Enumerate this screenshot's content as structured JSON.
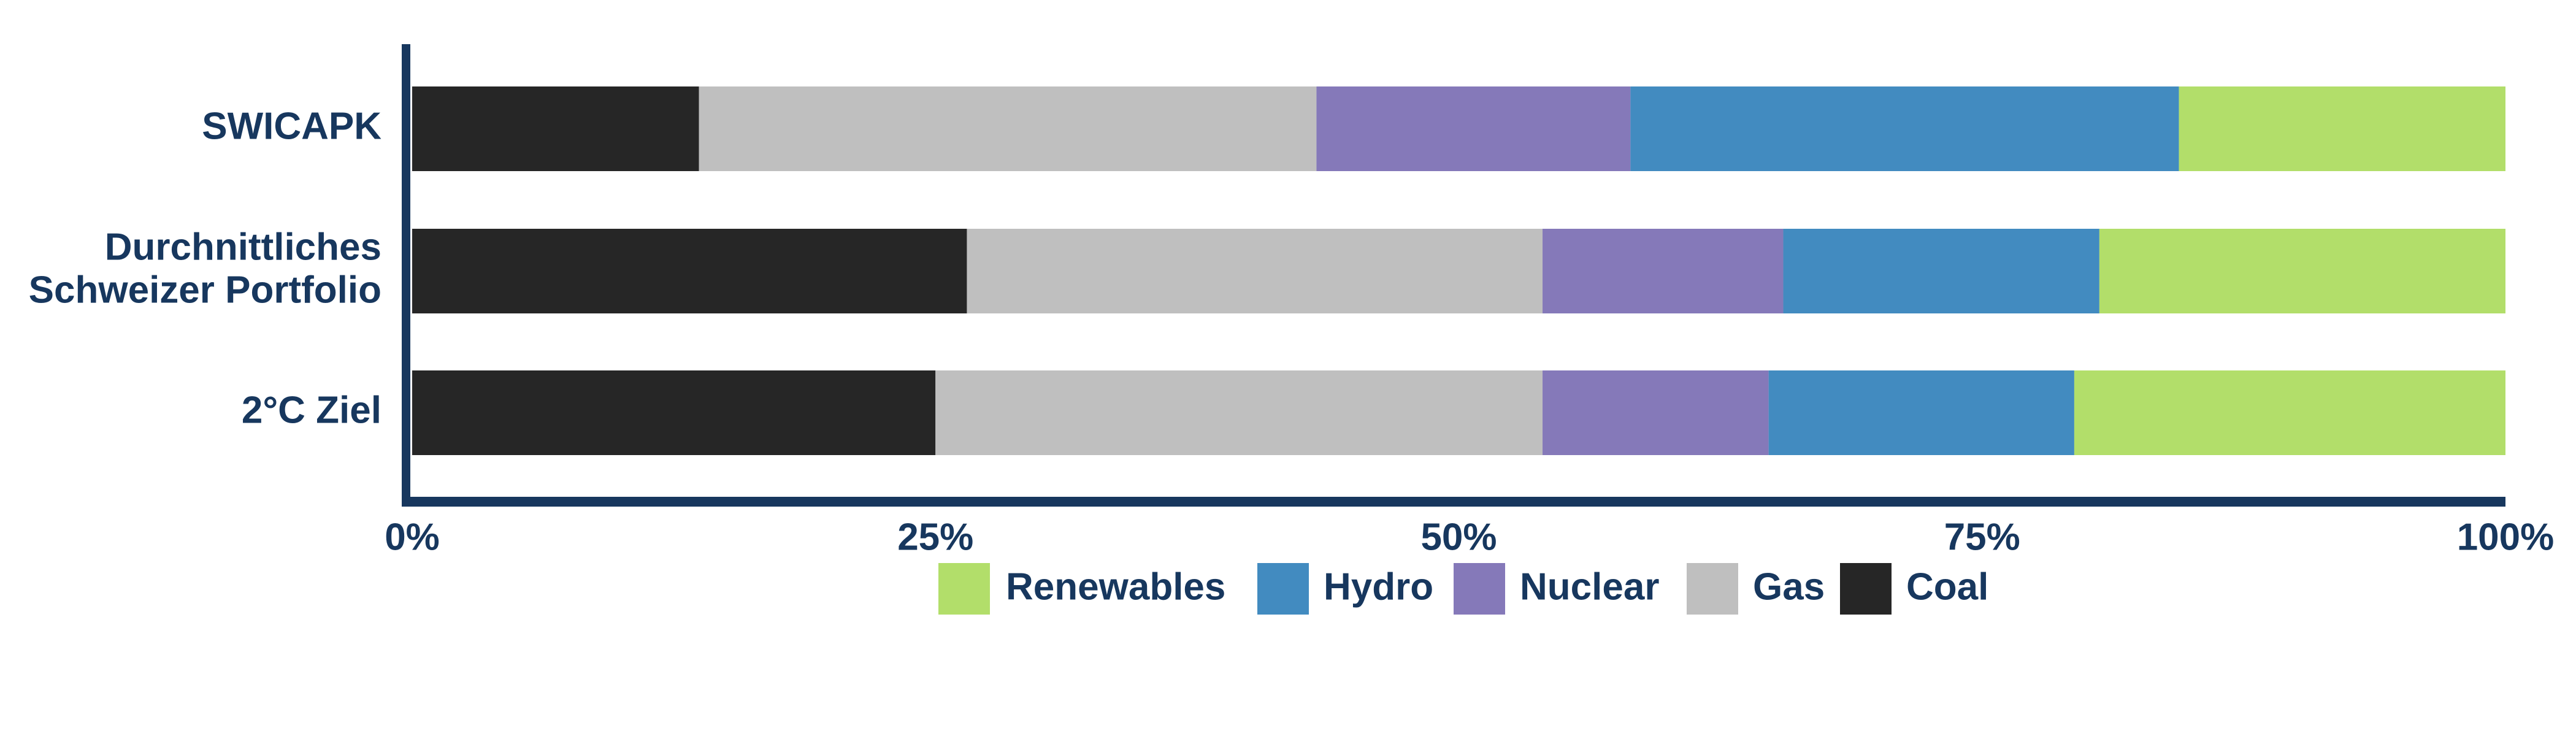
{
  "colors": {
    "axis": "#17375E",
    "text": "#17375E",
    "Coal": "#262626",
    "Gas": "#BFBFBF",
    "Nuclear": "#8579B9",
    "Hydro": "#428BC0",
    "Renewables": "#B2DE6A"
  },
  "chart_data": {
    "type": "bar",
    "orientation": "horizontal",
    "stacked": "100%",
    "categories": [
      [
        "SWICAPK"
      ],
      [
        "Durchnittliches",
        "Schweizer Portfolio"
      ],
      [
        "2°C Ziel"
      ]
    ],
    "series": [
      {
        "name": "Coal",
        "values": [
          13.7,
          26.5,
          25.0
        ]
      },
      {
        "name": "Gas",
        "values": [
          29.5,
          27.5,
          29.0
        ]
      },
      {
        "name": "Nuclear",
        "values": [
          15.0,
          11.5,
          10.8
        ]
      },
      {
        "name": "Hydro",
        "values": [
          26.2,
          15.1,
          14.6
        ]
      },
      {
        "name": "Renewables",
        "values": [
          15.6,
          19.4,
          20.6
        ]
      }
    ],
    "xlim": [
      0,
      100
    ],
    "xticks": [
      "0%",
      "25%",
      "50%",
      "75%",
      "100%"
    ],
    "grid": false,
    "legend_position": "bottom",
    "legend_order": [
      "Renewables",
      "Hydro",
      "Nuclear",
      "Gas",
      "Coal"
    ]
  }
}
